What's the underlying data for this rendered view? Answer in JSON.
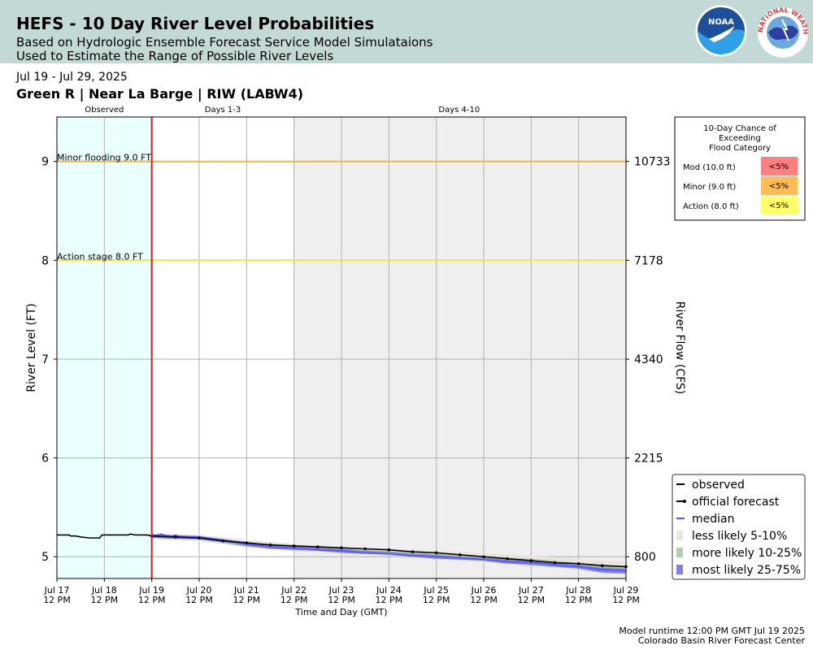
{
  "header": {
    "title": "HEFS - 10 Day River Level Probabilities",
    "subtitle_line1": "Based on Hydrologic Ensemble Forecast Service Model Simulataions",
    "subtitle_line2": "Used to Estimate the Range of Possible River Levels",
    "logo_noaa_text": "NOAA",
    "logo_nws_text": "NATIONAL WEATHER SERVICE"
  },
  "date_range": "Jul 19 - Jul 29, 2025",
  "station": "Green R | Near La Barge | RIW (LABW4)",
  "footer": {
    "runtime": "Model runtime 12:00 PM GMT Jul 19 2025",
    "center": "Colorado Basin River Forecast Center"
  },
  "chart_data": {
    "type": "line",
    "xlabel": "Time and Day (GMT)",
    "ylabel": "River Level (FT)",
    "y2label": "River Flow (CFS)",
    "ylim": [
      4.78,
      9.45
    ],
    "xlim_days": [
      17,
      29
    ],
    "grid": true,
    "legend_position": "bottom-right",
    "period_labels": [
      "Observed",
      "Days 1-3",
      "Days 4-10"
    ],
    "x_ticks": [
      {
        "day": 17,
        "l1": "Jul 17",
        "l2": "12 PM"
      },
      {
        "day": 18,
        "l1": "Jul 18",
        "l2": "12 PM"
      },
      {
        "day": 19,
        "l1": "Jul 19",
        "l2": "12 PM"
      },
      {
        "day": 20,
        "l1": "Jul 20",
        "l2": "12 PM"
      },
      {
        "day": 21,
        "l1": "Jul 21",
        "l2": "12 PM"
      },
      {
        "day": 22,
        "l1": "Jul 22",
        "l2": "12 PM"
      },
      {
        "day": 23,
        "l1": "Jul 23",
        "l2": "12 PM"
      },
      {
        "day": 24,
        "l1": "Jul 24",
        "l2": "12 PM"
      },
      {
        "day": 25,
        "l1": "Jul 25",
        "l2": "12 PM"
      },
      {
        "day": 26,
        "l1": "Jul 26",
        "l2": "12 PM"
      },
      {
        "day": 27,
        "l1": "Jul 27",
        "l2": "12 PM"
      },
      {
        "day": 28,
        "l1": "Jul 28",
        "l2": "12 PM"
      },
      {
        "day": 29,
        "l1": "Jul 29",
        "l2": "12 PM"
      }
    ],
    "y_ticks": [
      5,
      6,
      7,
      8,
      9
    ],
    "y2_ticks": [
      {
        "stage": 5,
        "label": "800"
      },
      {
        "stage": 6,
        "label": "2215"
      },
      {
        "stage": 7,
        "label": "4340"
      },
      {
        "stage": 8,
        "label": "7178"
      },
      {
        "stage": 9,
        "label": "10733"
      }
    ],
    "thresholds": [
      {
        "stage": 9.0,
        "label": "Minor flooding 9.0 FT",
        "color": "#f5b342"
      },
      {
        "stage": 8.0,
        "label": "Action stage 8.0 FT",
        "color": "#f2e33a"
      }
    ],
    "forecast_start_day": 19,
    "days_4_10_start_day": 22,
    "colors": {
      "observed_bg": "#eaffff",
      "days_4_10_bg": "#efefef",
      "forecast_line": "#ee1111",
      "median": "#5555ff",
      "band_5_10": "#e9e6dc",
      "band_10_25": "#b0d0ac",
      "band_25_75": "#7f7ff2"
    },
    "observed": {
      "x": [
        17,
        17.25,
        17.3,
        17.4,
        17.5,
        17.7,
        17.9,
        17.95,
        18,
        18.1,
        18.3,
        18.5,
        18.55,
        18.65,
        18.75,
        18.9,
        19
      ],
      "y": [
        5.22,
        5.22,
        5.21,
        5.21,
        5.2,
        5.19,
        5.19,
        5.22,
        5.22,
        5.22,
        5.22,
        5.22,
        5.23,
        5.22,
        5.22,
        5.22,
        5.21
      ]
    },
    "official_forecast": {
      "x": [
        19,
        19.5,
        20,
        20.5,
        21,
        21.5,
        22,
        22.5,
        23,
        23.5,
        24,
        24.5,
        25,
        25.5,
        26,
        26.5,
        27,
        27.5,
        28,
        28.5,
        29
      ],
      "y": [
        5.21,
        5.2,
        5.19,
        5.16,
        5.14,
        5.12,
        5.11,
        5.1,
        5.09,
        5.08,
        5.07,
        5.05,
        5.04,
        5.02,
        5.0,
        4.98,
        4.96,
        4.94,
        4.93,
        4.91,
        4.9
      ]
    },
    "median": {
      "x": [
        19,
        19.2,
        19.4,
        19.5,
        19.6,
        19.8,
        20,
        20.5,
        21,
        21.5,
        22,
        22.5,
        23,
        23.5,
        24,
        24.5,
        25,
        25.5,
        26,
        26.5,
        27,
        27.5,
        28,
        28.5,
        29
      ],
      "y": [
        5.21,
        5.23,
        5.2,
        5.22,
        5.2,
        5.2,
        5.2,
        5.17,
        5.13,
        5.1,
        5.09,
        5.07,
        5.06,
        5.04,
        5.03,
        5.01,
        5.0,
        4.99,
        4.97,
        4.95,
        4.94,
        4.92,
        4.9,
        4.87,
        4.86
      ]
    },
    "bands": [
      {
        "name": "less likely 5-10%",
        "key": "band_5_10",
        "x": [
          19,
          20,
          21,
          22,
          23,
          24,
          25,
          26,
          27,
          28,
          29
        ],
        "low": [
          5.19,
          5.16,
          5.1,
          5.06,
          5.04,
          5.01,
          4.99,
          4.95,
          4.92,
          4.88,
          4.84
        ],
        "high": [
          5.23,
          5.22,
          5.17,
          5.13,
          5.1,
          5.08,
          5.06,
          5.04,
          5.01,
          4.98,
          4.95
        ]
      },
      {
        "name": "more likely 10-25%",
        "key": "band_10_25",
        "x": [
          19,
          20,
          21,
          22,
          23,
          24,
          25,
          26,
          27,
          28,
          29
        ],
        "low": [
          5.19,
          5.17,
          5.1,
          5.07,
          5.05,
          5.02,
          5.0,
          4.96,
          4.91,
          4.88,
          4.84
        ],
        "high": [
          5.22,
          5.21,
          5.15,
          5.11,
          5.08,
          5.06,
          5.03,
          5.01,
          4.98,
          4.94,
          4.9
        ]
      },
      {
        "name": "most likely 25-75%",
        "key": "band_25_75",
        "x": [
          19,
          19.5,
          20,
          20.5,
          21,
          21.5,
          22,
          22.5,
          23,
          23.5,
          24,
          24.5,
          25,
          25.5,
          26,
          26.5,
          27,
          27.5,
          28,
          28.5,
          29
        ],
        "low": [
          5.19,
          5.18,
          5.18,
          5.15,
          5.11,
          5.08,
          5.07,
          5.06,
          5.04,
          5.03,
          5.02,
          5.0,
          4.98,
          4.97,
          4.96,
          4.93,
          4.92,
          4.9,
          4.88,
          4.84,
          4.83
        ],
        "high": [
          5.23,
          5.22,
          5.21,
          5.18,
          5.15,
          5.12,
          5.11,
          5.09,
          5.08,
          5.06,
          5.05,
          5.03,
          5.02,
          5.0,
          4.99,
          4.97,
          4.96,
          4.94,
          4.92,
          4.89,
          4.88
        ]
      }
    ],
    "legend": [
      {
        "label": "observed",
        "kind": "line",
        "color": "#000000"
      },
      {
        "label": "official forecast",
        "kind": "dotline",
        "color": "#000000"
      },
      {
        "label": "median",
        "kind": "line",
        "color": "#5555ff"
      },
      {
        "label": "less likely 5-10%",
        "kind": "patch",
        "color": "#e9e6dc"
      },
      {
        "label": "more likely 10-25%",
        "kind": "patch",
        "color": "#b0d0ac"
      },
      {
        "label": "most likely 25-75%",
        "kind": "patch",
        "color": "#7f7ff2"
      }
    ],
    "flood_table": {
      "title_lines": [
        "10-Day Chance of",
        "Exceeding",
        "Flood Category"
      ],
      "rows": [
        {
          "label": "Mod (10.0 ft)",
          "value": "<5%",
          "color": "#ff7f7f"
        },
        {
          "label": "Minor (9.0 ft)",
          "value": "<5%",
          "color": "#ffbb55"
        },
        {
          "label": "Action (8.0 ft)",
          "value": "<5%",
          "color": "#ffff66"
        }
      ]
    }
  }
}
